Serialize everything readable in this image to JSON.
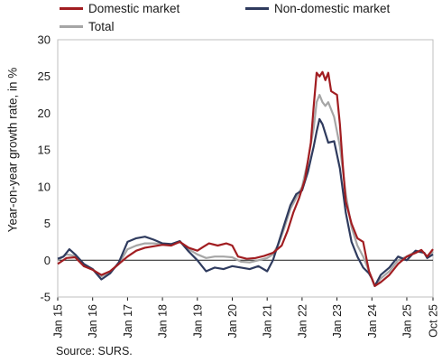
{
  "chart_data": {
    "type": "line",
    "xlabel": "",
    "ylabel": "Year-on-year growth rate, in %",
    "ylim": [
      -5,
      30
    ],
    "yticks": [
      -5,
      0,
      5,
      10,
      15,
      20,
      25,
      30
    ],
    "xlim": [
      "2015-01",
      "2025-10"
    ],
    "xticks": [
      "2015-01",
      "2016-01",
      "2017-01",
      "2018-01",
      "2019-01",
      "2020-01",
      "2021-01",
      "2022-01",
      "2023-01",
      "2024-01",
      "2025-01",
      "2025-10"
    ],
    "xtick_labels": [
      "Jan 15",
      "Jan 16",
      "Jan 17",
      "Jan 18",
      "Jan 19",
      "Jan 20",
      "Jan 21",
      "Jan 22",
      "Jan 23",
      "Jan 24",
      "Jan 25",
      "Oct 25"
    ],
    "grid": false,
    "zero_line": true,
    "legend_position": "top",
    "series": [
      {
        "name": "Domestic market",
        "color": "#a11d21",
        "points": [
          [
            "2015-01",
            -0.5
          ],
          [
            "2015-04",
            0.3
          ],
          [
            "2015-07",
            0.4
          ],
          [
            "2015-10",
            -0.8
          ],
          [
            "2016-01",
            -1.3
          ],
          [
            "2016-04",
            -2.0
          ],
          [
            "2016-07",
            -1.5
          ],
          [
            "2016-10",
            -0.5
          ],
          [
            "2017-01",
            0.5
          ],
          [
            "2017-04",
            1.3
          ],
          [
            "2017-07",
            1.7
          ],
          [
            "2017-10",
            1.9
          ],
          [
            "2018-01",
            2.1
          ],
          [
            "2018-04",
            2.0
          ],
          [
            "2018-07",
            2.5
          ],
          [
            "2018-10",
            1.7
          ],
          [
            "2019-01",
            1.3
          ],
          [
            "2019-03",
            1.8
          ],
          [
            "2019-05",
            2.3
          ],
          [
            "2019-08",
            2.0
          ],
          [
            "2019-11",
            2.3
          ],
          [
            "2020-01",
            2.0
          ],
          [
            "2020-03",
            0.5
          ],
          [
            "2020-06",
            0.2
          ],
          [
            "2020-09",
            0.3
          ],
          [
            "2020-12",
            0.6
          ],
          [
            "2021-03",
            1.0
          ],
          [
            "2021-06",
            2.0
          ],
          [
            "2021-08",
            4.0
          ],
          [
            "2021-10",
            6.5
          ],
          [
            "2021-12",
            8.5
          ],
          [
            "2022-02",
            11.0
          ],
          [
            "2022-04",
            16.0
          ],
          [
            "2022-05",
            21.0
          ],
          [
            "2022-06",
            25.5
          ],
          [
            "2022-07",
            25.0
          ],
          [
            "2022-08",
            25.6
          ],
          [
            "2022-09",
            24.5
          ],
          [
            "2022-10",
            25.5
          ],
          [
            "2022-11",
            23.0
          ],
          [
            "2023-01",
            22.5
          ],
          [
            "2023-02",
            18.5
          ],
          [
            "2023-03",
            13.0
          ],
          [
            "2023-04",
            8.0
          ],
          [
            "2023-06",
            5.0
          ],
          [
            "2023-08",
            3.0
          ],
          [
            "2023-10",
            2.5
          ],
          [
            "2023-11",
            0.5
          ],
          [
            "2023-12",
            -1.5
          ],
          [
            "2024-02",
            -3.5
          ],
          [
            "2024-04",
            -3.0
          ],
          [
            "2024-07",
            -2.0
          ],
          [
            "2024-10",
            -0.5
          ],
          [
            "2025-01",
            0.5
          ],
          [
            "2025-04",
            1.0
          ],
          [
            "2025-06",
            1.4
          ],
          [
            "2025-08",
            0.5
          ],
          [
            "2025-10",
            1.5
          ]
        ]
      },
      {
        "name": "Non-domestic market",
        "color": "#2f3b5e",
        "points": [
          [
            "2015-01",
            0.2
          ],
          [
            "2015-03",
            0.5
          ],
          [
            "2015-05",
            1.5
          ],
          [
            "2015-07",
            0.8
          ],
          [
            "2015-10",
            -0.5
          ],
          [
            "2016-01",
            -1.2
          ],
          [
            "2016-04",
            -2.6
          ],
          [
            "2016-07",
            -1.8
          ],
          [
            "2016-10",
            -0.3
          ],
          [
            "2017-01",
            2.5
          ],
          [
            "2017-04",
            3.0
          ],
          [
            "2017-07",
            3.2
          ],
          [
            "2017-10",
            2.8
          ],
          [
            "2018-01",
            2.3
          ],
          [
            "2018-04",
            2.2
          ],
          [
            "2018-07",
            2.6
          ],
          [
            "2018-10",
            1.2
          ],
          [
            "2019-01",
            0.0
          ],
          [
            "2019-04",
            -1.5
          ],
          [
            "2019-07",
            -1.0
          ],
          [
            "2019-10",
            -1.2
          ],
          [
            "2020-01",
            -0.8
          ],
          [
            "2020-04",
            -1.0
          ],
          [
            "2020-07",
            -1.2
          ],
          [
            "2020-10",
            -0.8
          ],
          [
            "2021-01",
            -1.5
          ],
          [
            "2021-03",
            0.0
          ],
          [
            "2021-05",
            2.5
          ],
          [
            "2021-07",
            5.0
          ],
          [
            "2021-09",
            7.5
          ],
          [
            "2021-11",
            9.0
          ],
          [
            "2022-01",
            9.5
          ],
          [
            "2022-03",
            12.0
          ],
          [
            "2022-05",
            15.5
          ],
          [
            "2022-06",
            17.5
          ],
          [
            "2022-07",
            19.2
          ],
          [
            "2022-08",
            18.5
          ],
          [
            "2022-10",
            16.0
          ],
          [
            "2022-12",
            16.2
          ],
          [
            "2023-02",
            12.5
          ],
          [
            "2023-04",
            6.5
          ],
          [
            "2023-06",
            2.5
          ],
          [
            "2023-08",
            0.5
          ],
          [
            "2023-10",
            -1.0
          ],
          [
            "2023-12",
            -1.8
          ],
          [
            "2024-01",
            -2.5
          ],
          [
            "2024-02",
            -3.5
          ],
          [
            "2024-04",
            -2.0
          ],
          [
            "2024-07",
            -1.0
          ],
          [
            "2024-10",
            0.5
          ],
          [
            "2025-01",
            0.0
          ],
          [
            "2025-04",
            1.3
          ],
          [
            "2025-07",
            1.0
          ],
          [
            "2025-08",
            0.3
          ],
          [
            "2025-10",
            0.8
          ]
        ]
      },
      {
        "name": "Total",
        "color": "#a6a6a6",
        "points": [
          [
            "2015-01",
            0.0
          ],
          [
            "2015-04",
            0.8
          ],
          [
            "2015-07",
            0.6
          ],
          [
            "2015-10",
            -0.8
          ],
          [
            "2016-01",
            -1.2
          ],
          [
            "2016-04",
            -2.2
          ],
          [
            "2016-07",
            -1.6
          ],
          [
            "2016-10",
            -0.5
          ],
          [
            "2017-01",
            1.5
          ],
          [
            "2017-04",
            2.0
          ],
          [
            "2017-07",
            2.3
          ],
          [
            "2017-10",
            2.3
          ],
          [
            "2018-01",
            2.2
          ],
          [
            "2018-04",
            2.1
          ],
          [
            "2018-07",
            2.5
          ],
          [
            "2018-10",
            1.5
          ],
          [
            "2019-01",
            0.8
          ],
          [
            "2019-04",
            0.3
          ],
          [
            "2019-07",
            0.5
          ],
          [
            "2019-10",
            0.5
          ],
          [
            "2020-01",
            0.4
          ],
          [
            "2020-04",
            -0.2
          ],
          [
            "2020-07",
            -0.3
          ],
          [
            "2020-10",
            0.0
          ],
          [
            "2021-01",
            0.3
          ],
          [
            "2021-03",
            0.8
          ],
          [
            "2021-05",
            2.3
          ],
          [
            "2021-07",
            4.5
          ],
          [
            "2021-09",
            7.0
          ],
          [
            "2021-11",
            8.5
          ],
          [
            "2022-01",
            10.0
          ],
          [
            "2022-03",
            13.5
          ],
          [
            "2022-05",
            18.0
          ],
          [
            "2022-06",
            21.5
          ],
          [
            "2022-07",
            22.5
          ],
          [
            "2022-08",
            21.5
          ],
          [
            "2022-09",
            21.0
          ],
          [
            "2022-10",
            21.5
          ],
          [
            "2022-12",
            19.5
          ],
          [
            "2023-02",
            15.5
          ],
          [
            "2023-04",
            9.0
          ],
          [
            "2023-06",
            4.5
          ],
          [
            "2023-08",
            2.0
          ],
          [
            "2023-10",
            0.5
          ],
          [
            "2023-12",
            -1.5
          ],
          [
            "2024-02",
            -3.5
          ],
          [
            "2024-04",
            -2.5
          ],
          [
            "2024-07",
            -1.5
          ],
          [
            "2024-10",
            0.0
          ],
          [
            "2025-01",
            0.5
          ],
          [
            "2025-04",
            1.2
          ],
          [
            "2025-07",
            1.0
          ],
          [
            "2025-08",
            0.4
          ],
          [
            "2025-10",
            1.2
          ]
        ]
      }
    ]
  },
  "source": "Source: SURS."
}
